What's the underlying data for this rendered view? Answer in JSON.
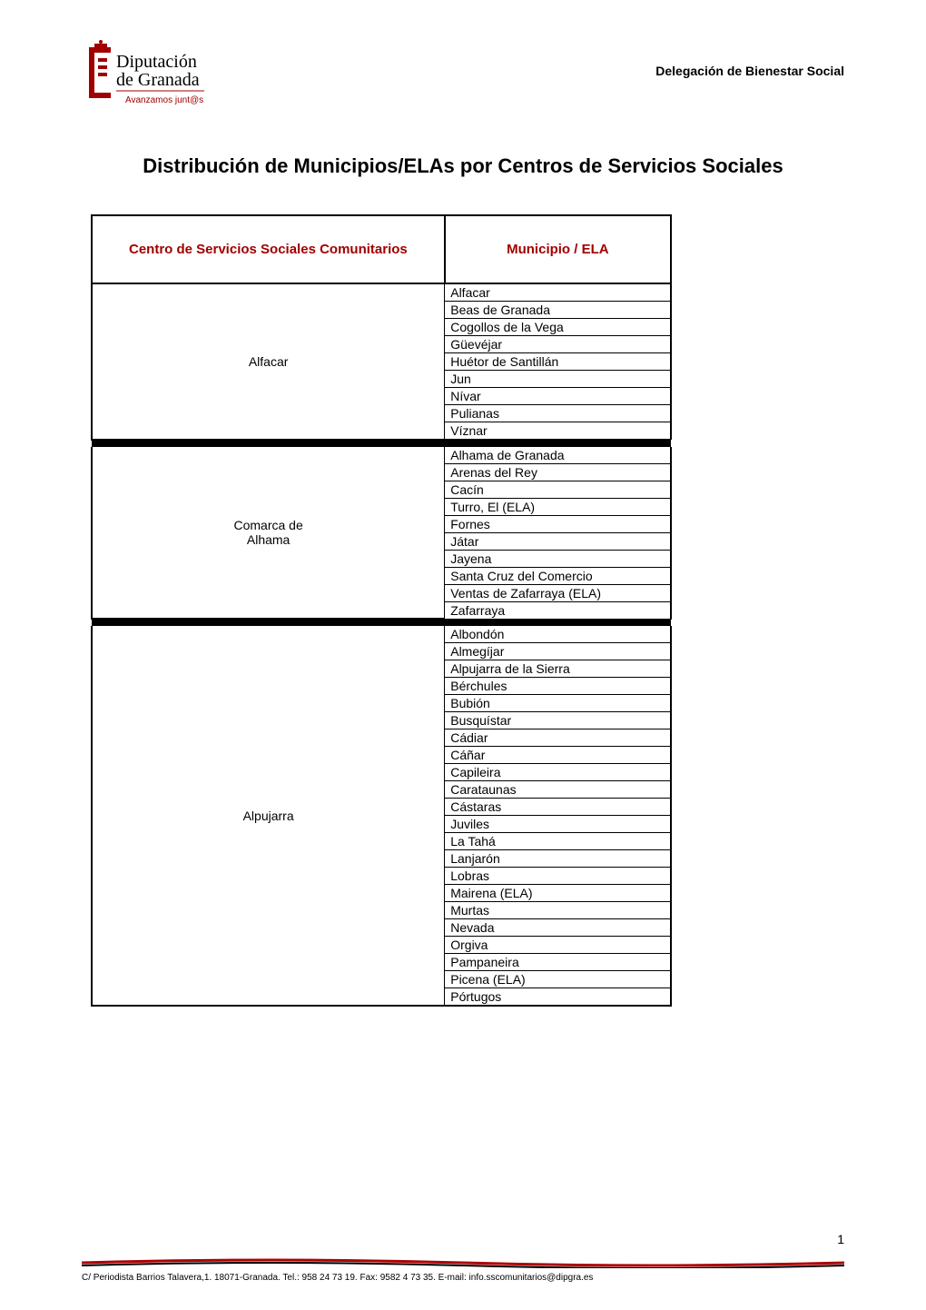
{
  "header": {
    "logo": {
      "name_line1": "Diputación",
      "name_line2": "de Granada",
      "tagline": "Avanzamos junt@s",
      "brand_color": "#a00000"
    },
    "delegation": "Delegación de Bienestar Social"
  },
  "title": "Distribución de Municipios/ELAs por Centros de Servicios Sociales",
  "table": {
    "header_color": "#a00000",
    "columns": [
      "Centro de Servicios Sociales Comunitarios",
      "Municipio / ELA"
    ],
    "groups": [
      {
        "centro": "Alfacar",
        "municipios": [
          "Alfacar",
          "Beas de Granada",
          "Cogollos de la Vega",
          "Güevéjar",
          "Huétor de Santillán",
          "Jun",
          "Nívar",
          "Pulianas",
          "Víznar"
        ]
      },
      {
        "centro": "Comarca de\nAlhama",
        "municipios": [
          "Alhama de Granada",
          "Arenas del Rey",
          "Cacín",
          "Turro, El (ELA)",
          "Fornes",
          "Játar",
          "Jayena",
          "Santa Cruz del Comercio",
          "Ventas de Zafarraya (ELA)",
          "Zafarraya"
        ]
      },
      {
        "centro": "Alpujarra",
        "municipios": [
          "Albondón",
          "Almegíjar",
          "Alpujarra de la Sierra",
          "Bérchules",
          "Bubión",
          "Busquístar",
          "Cádiar",
          "Cáñar",
          "Capileira",
          "Carataunas",
          "Cástaras",
          "Juviles",
          "La Tahá",
          "Lanjarón",
          "Lobras",
          "Mairena (ELA)",
          "Murtas",
          "Nevada",
          "Orgiva",
          "Pampaneira",
          "Picena (ELA)",
          "Pórtugos"
        ]
      }
    ]
  },
  "footer": {
    "text": "C/ Periodista Barrios Talavera,1. 18071-Granada. Tel.: 958 24 73 19. Fax: 9582 4 73 35. E-mail: info.sscomunitarios@dipgra.es",
    "line_color_1": "#b00000",
    "line_color_2": "#000000"
  },
  "page_number": "1"
}
